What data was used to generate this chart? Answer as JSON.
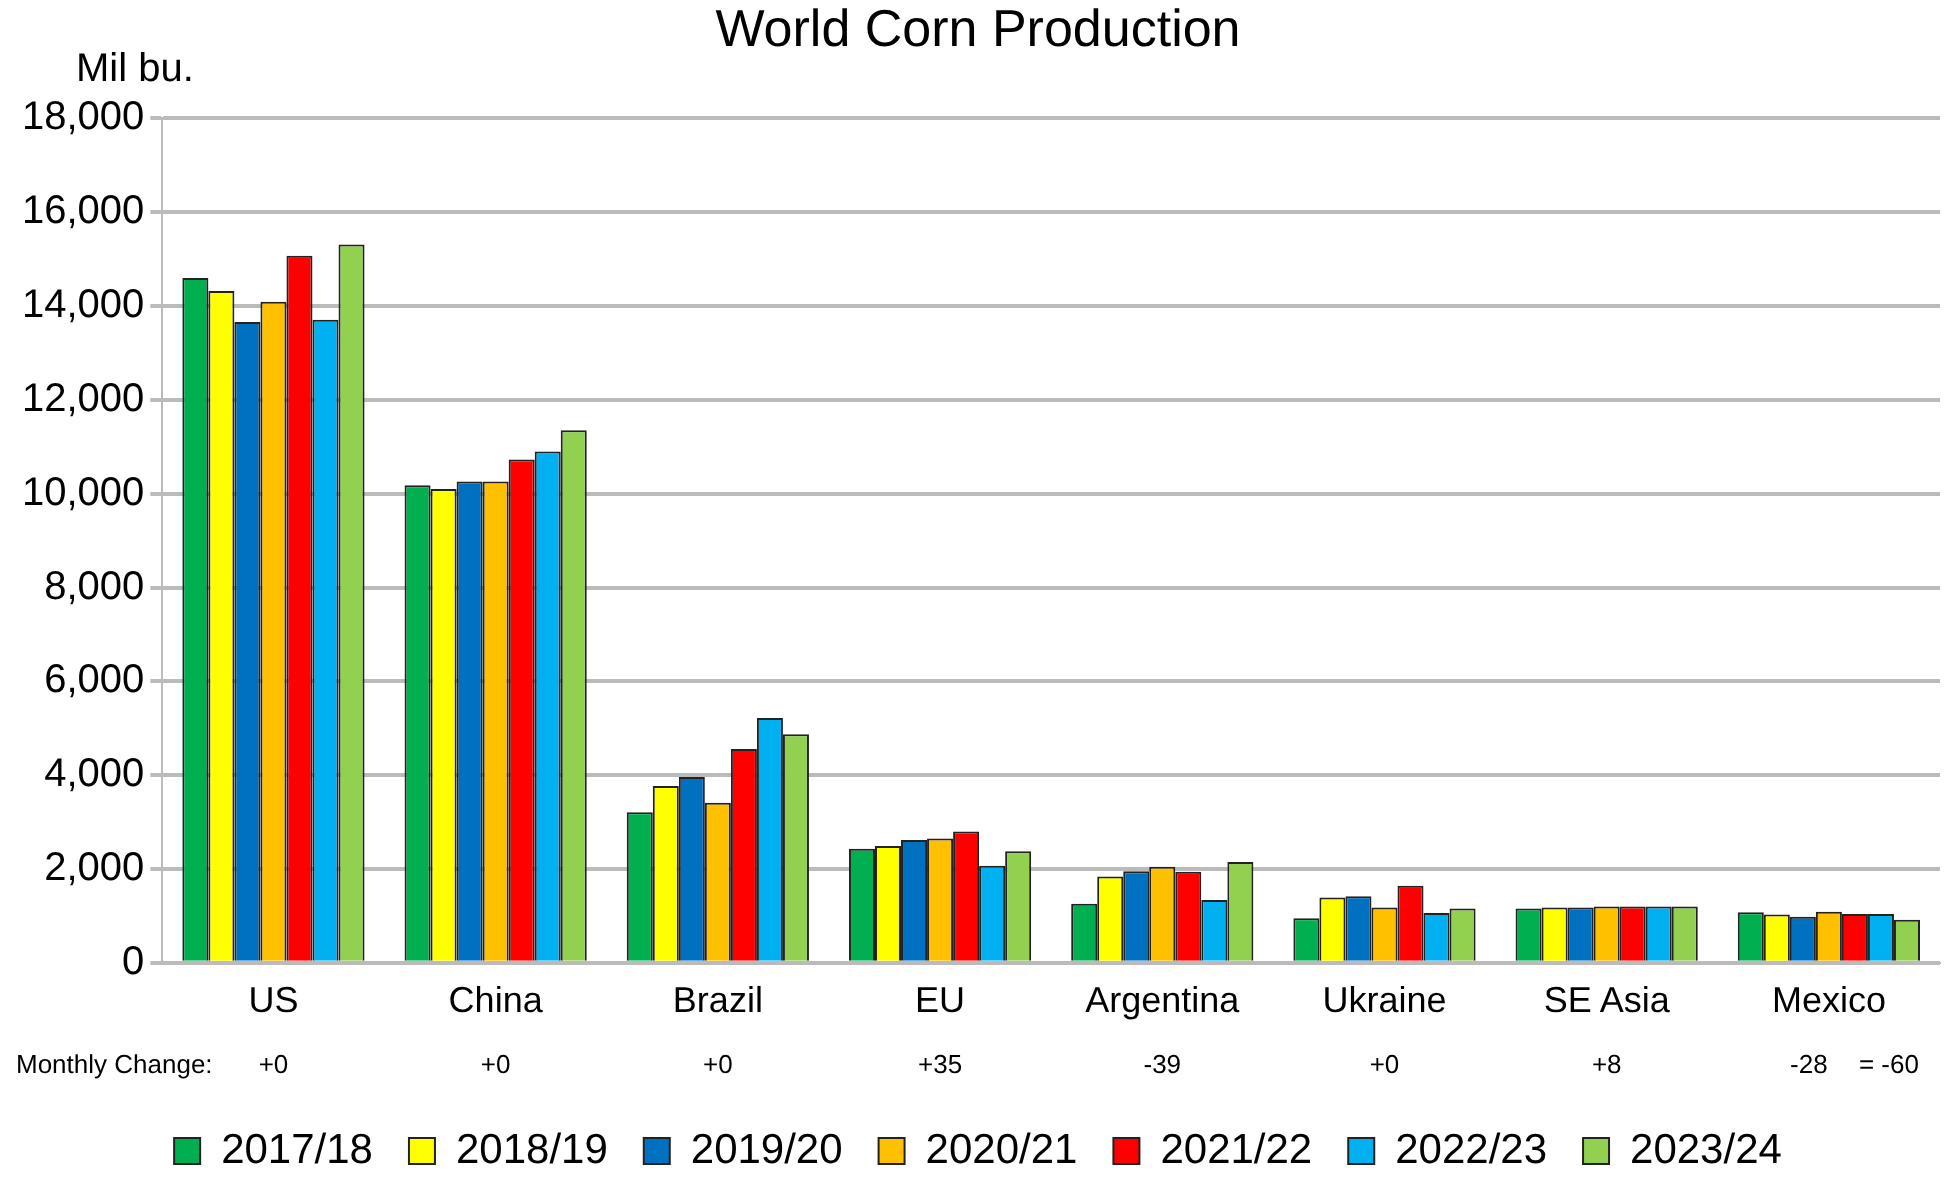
{
  "chart_data": {
    "type": "bar",
    "title": "World Corn Production",
    "ylabel": "Mil bu.",
    "categories": [
      "US",
      "China",
      "Brazil",
      "EU",
      "Argentina",
      "Ukraine",
      "SE Asia",
      "Mexico"
    ],
    "series": [
      {
        "name": "2017/18",
        "color": "#00b050",
        "values": [
          14600,
          10180,
          3210,
          2430,
          1260,
          950,
          1160,
          1080
        ]
      },
      {
        "name": "2018/19",
        "color": "#ffff00",
        "values": [
          14320,
          10100,
          3770,
          2490,
          1840,
          1390,
          1180,
          1030
        ]
      },
      {
        "name": "2019/20",
        "color": "#0070c0",
        "values": [
          13660,
          10260,
          3960,
          2620,
          1950,
          1420,
          1180,
          980
        ]
      },
      {
        "name": "2020/21",
        "color": "#ffc000",
        "values": [
          14090,
          10260,
          3410,
          2650,
          2050,
          1180,
          1200,
          1090
        ]
      },
      {
        "name": "2021/22",
        "color": "#ff0000",
        "values": [
          15070,
          10730,
          4560,
          2800,
          1940,
          1640,
          1200,
          1040
        ]
      },
      {
        "name": "2022/23",
        "color": "#00b0f0",
        "values": [
          13710,
          10900,
          5220,
          2070,
          1340,
          1060,
          1200,
          1040
        ]
      },
      {
        "name": "2023/24",
        "color": "#92d050",
        "values": [
          15310,
          11350,
          4870,
          2380,
          2150,
          1160,
          1200,
          920
        ]
      }
    ],
    "ylim": [
      0,
      18000
    ],
    "yticks": [
      0,
      {
        "value": 2000,
        "label": "2,000"
      },
      {
        "value": 4000,
        "label": "4,000"
      },
      {
        "value": 6000,
        "label": "6,000"
      },
      {
        "value": 8000,
        "label": "8,000"
      },
      {
        "value": 10000,
        "label": "10,000"
      },
      {
        "value": 12000,
        "label": "12,000"
      },
      {
        "value": 14000,
        "label": "14,000"
      },
      {
        "value": 16000,
        "label": "16,000"
      },
      {
        "value": 18000,
        "label": "18,000"
      }
    ],
    "grid": "y",
    "legend": "bottom",
    "annotations": [
      "Monthly Change:",
      "+0",
      "+0",
      "+0",
      "+35",
      "-39",
      "+0",
      "+8",
      "-28",
      "= -60"
    ]
  }
}
